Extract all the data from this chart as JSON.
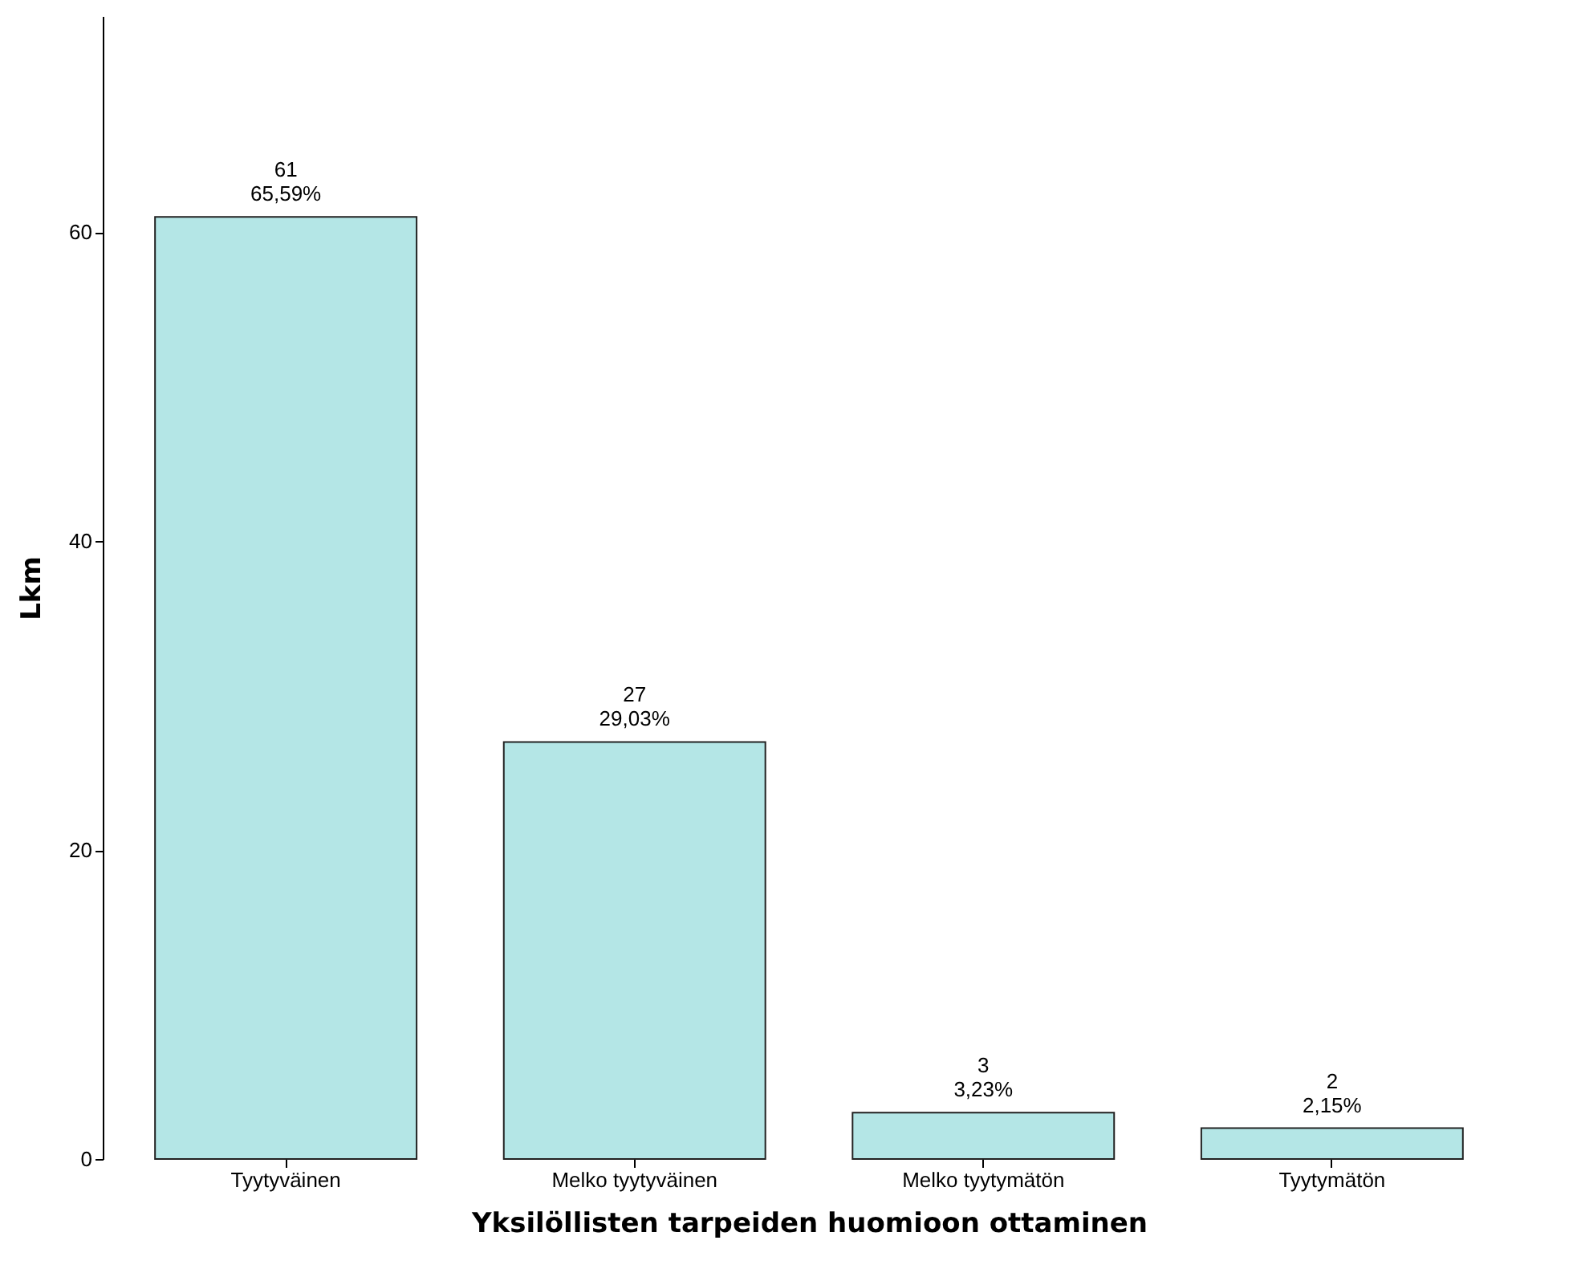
{
  "chart_data": {
    "type": "bar",
    "xlabel": "Yksilöllisten tarpeiden huomioon ottaminen",
    "ylabel": "Lkm",
    "categories": [
      "Tyytyväinen",
      "Melko tyytyväinen",
      "Melko tyytymätön",
      "Tyytymätön"
    ],
    "values": [
      61,
      27,
      3,
      2
    ],
    "value_labels": [
      "61\n65,59%",
      "27\n29,03%",
      "3\n3,23%",
      "2\n2,15%"
    ],
    "color": "#b4e6e6",
    "ylim": [
      0,
      74
    ],
    "yticks": [
      0,
      20,
      40,
      60
    ],
    "grid": false
  }
}
